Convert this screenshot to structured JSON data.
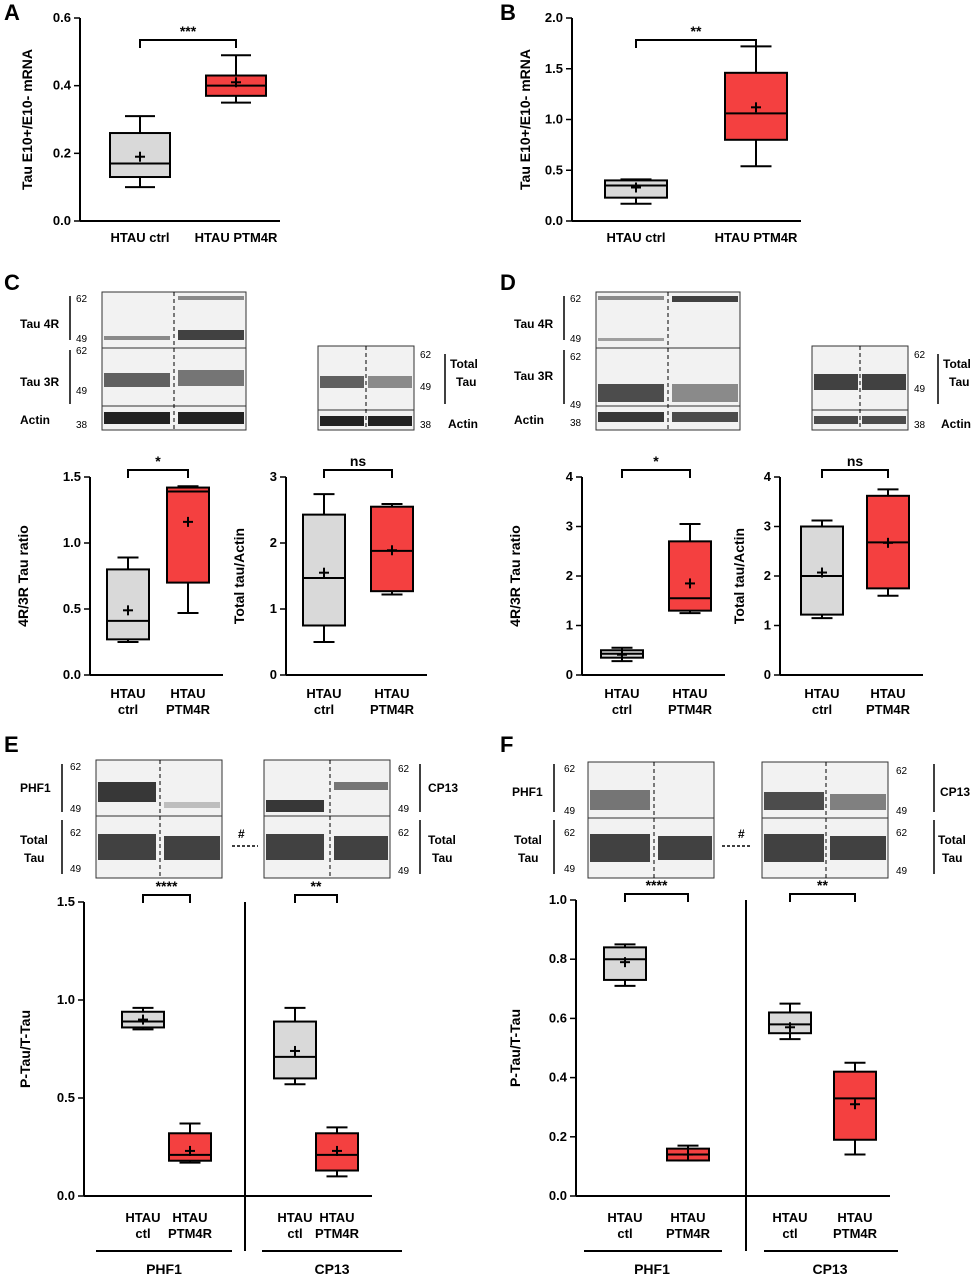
{
  "colors": {
    "ctrl": "#d9d9d9",
    "ptm4r": "#f44040",
    "stroke": "#000000"
  },
  "chart_data": [
    {
      "panel": "A",
      "type": "box",
      "ylabel": "Tau E10+/E10- mRNA",
      "ylim": [
        0,
        0.6
      ],
      "yticks": [
        0.0,
        0.2,
        0.4,
        0.6
      ],
      "categories": [
        "HTAU ctrl",
        "HTAU PTM4R"
      ],
      "series": [
        {
          "min": 0.1,
          "q1": 0.13,
          "median": 0.17,
          "q3": 0.26,
          "max": 0.31,
          "mean": 0.19,
          "color": "ctrl"
        },
        {
          "min": 0.35,
          "q1": 0.37,
          "median": 0.4,
          "q3": 0.43,
          "max": 0.49,
          "mean": 0.41,
          "color": "ptm4r"
        }
      ],
      "significance": "***"
    },
    {
      "panel": "B",
      "type": "box",
      "ylabel": "Tau E10+/E10- mRNA",
      "ylim": [
        0,
        2.0
      ],
      "yticks": [
        0.0,
        0.5,
        1.0,
        1.5,
        2.0
      ],
      "categories": [
        "HTAU ctrl",
        "HTAU PTM4R"
      ],
      "series": [
        {
          "min": 0.17,
          "q1": 0.23,
          "median": 0.35,
          "q3": 0.4,
          "max": 0.41,
          "mean": 0.33,
          "color": "ctrl"
        },
        {
          "min": 0.54,
          "q1": 0.8,
          "median": 1.06,
          "q3": 1.46,
          "max": 1.72,
          "mean": 1.12,
          "color": "ptm4r"
        }
      ],
      "significance": "**"
    },
    {
      "panel": "C1",
      "type": "box",
      "ylabel": "4R/3R Tau ratio",
      "ylim": [
        0,
        1.5
      ],
      "yticks": [
        0.0,
        0.5,
        1.0,
        1.5
      ],
      "categories": [
        "HTAU\nctrl",
        "HTAU\nPTM4R"
      ],
      "series": [
        {
          "min": 0.25,
          "q1": 0.27,
          "median": 0.41,
          "q3": 0.8,
          "max": 0.89,
          "mean": 0.49,
          "color": "ctrl"
        },
        {
          "min": 0.47,
          "q1": 0.7,
          "median": 1.39,
          "q3": 1.42,
          "max": 1.43,
          "mean": 1.16,
          "color": "ptm4r"
        }
      ],
      "significance": "*"
    },
    {
      "panel": "C2",
      "type": "box",
      "ylabel": "Total tau/Actin",
      "ylim": [
        0,
        3
      ],
      "yticks": [
        0,
        1,
        2,
        3
      ],
      "categories": [
        "HTAU\nctrl",
        "HTAU\nPTM4R"
      ],
      "series": [
        {
          "min": 0.5,
          "q1": 0.75,
          "median": 1.47,
          "q3": 2.43,
          "max": 2.74,
          "mean": 1.55,
          "color": "ctrl"
        },
        {
          "min": 1.22,
          "q1": 1.27,
          "median": 1.88,
          "q3": 2.55,
          "max": 2.59,
          "mean": 1.89,
          "color": "ptm4r"
        }
      ],
      "significance": "ns"
    },
    {
      "panel": "D1",
      "type": "box",
      "ylabel": "4R/3R Tau ratio",
      "ylim": [
        0,
        4
      ],
      "yticks": [
        0,
        1,
        2,
        3,
        4
      ],
      "categories": [
        "HTAU\nctrl",
        "HTAU\nPTM4R"
      ],
      "series": [
        {
          "min": 0.28,
          "q1": 0.35,
          "median": 0.43,
          "q3": 0.5,
          "max": 0.55,
          "mean": 0.41,
          "color": "ctrl"
        },
        {
          "min": 1.25,
          "q1": 1.3,
          "median": 1.55,
          "q3": 2.7,
          "max": 3.05,
          "mean": 1.85,
          "color": "ptm4r"
        }
      ],
      "significance": "*"
    },
    {
      "panel": "D2",
      "type": "box",
      "ylabel": "Total tau/Actin",
      "ylim": [
        0,
        4
      ],
      "yticks": [
        0,
        1,
        2,
        3,
        4
      ],
      "categories": [
        "HTAU\nctrl",
        "HTAU\nPTM4R"
      ],
      "series": [
        {
          "min": 1.15,
          "q1": 1.22,
          "median": 2.0,
          "q3": 3.0,
          "max": 3.12,
          "mean": 2.07,
          "color": "ctrl"
        },
        {
          "min": 1.6,
          "q1": 1.75,
          "median": 2.68,
          "q3": 3.62,
          "max": 3.75,
          "mean": 2.67,
          "color": "ptm4r"
        }
      ],
      "significance": "ns"
    },
    {
      "panel": "E",
      "type": "box",
      "ylabel": "P-Tau/T-Tau",
      "ylim": [
        0,
        1.5
      ],
      "yticks": [
        0.0,
        0.5,
        1.0,
        1.5
      ],
      "categories": [
        "HTAU\nctl",
        "HTAU\nPTM4R",
        "HTAU\nctl",
        "HTAU\nPTM4R"
      ],
      "groups": [
        "PHF1",
        "CP13"
      ],
      "series": [
        {
          "min": 0.85,
          "q1": 0.86,
          "median": 0.89,
          "q3": 0.94,
          "max": 0.96,
          "mean": 0.9,
          "color": "ctrl"
        },
        {
          "min": 0.17,
          "q1": 0.18,
          "median": 0.21,
          "q3": 0.32,
          "max": 0.37,
          "mean": 0.23,
          "color": "ptm4r"
        },
        {
          "min": 0.57,
          "q1": 0.6,
          "median": 0.71,
          "q3": 0.89,
          "max": 0.96,
          "mean": 0.74,
          "color": "ctrl"
        },
        {
          "min": 0.1,
          "q1": 0.13,
          "median": 0.21,
          "q3": 0.32,
          "max": 0.35,
          "mean": 0.23,
          "color": "ptm4r"
        }
      ],
      "significance": [
        "****",
        "**"
      ]
    },
    {
      "panel": "F",
      "type": "box",
      "ylabel": "P-Tau/T-Tau",
      "ylim": [
        0,
        1.0
      ],
      "yticks": [
        0.0,
        0.2,
        0.4,
        0.6,
        0.8,
        1.0
      ],
      "categories": [
        "HTAU\nctl",
        "HTAU\nPTM4R",
        "HTAU\nctl",
        "HTAU\nPTM4R"
      ],
      "groups": [
        "PHF1",
        "CP13"
      ],
      "series": [
        {
          "min": 0.71,
          "q1": 0.73,
          "median": 0.8,
          "q3": 0.84,
          "max": 0.85,
          "mean": 0.79,
          "color": "ctrl"
        },
        {
          "min": 0.12,
          "q1": 0.12,
          "median": 0.14,
          "q3": 0.16,
          "max": 0.17,
          "mean": 0.14,
          "color": "ptm4r"
        },
        {
          "min": 0.53,
          "q1": 0.55,
          "median": 0.58,
          "q3": 0.62,
          "max": 0.65,
          "mean": 0.57,
          "color": "ctrl"
        },
        {
          "min": 0.14,
          "q1": 0.19,
          "median": 0.33,
          "q3": 0.42,
          "max": 0.45,
          "mean": 0.31,
          "color": "ptm4r"
        }
      ],
      "significance": [
        "****",
        "**"
      ]
    }
  ],
  "blots": {
    "C": {
      "tau4r": "Tau 4R",
      "tau3r": "Tau 3R",
      "actin": "Actin",
      "total1": "Total",
      "total2": "Tau",
      "mw": [
        "62",
        "49",
        "62",
        "49",
        "38",
        "62",
        "49",
        "38"
      ]
    },
    "D": {
      "tau4r": "Tau 4R",
      "tau3r": "Tau 3R",
      "actin": "Actin",
      "total1": "Total",
      "total2": "Tau",
      "mw": [
        "62",
        "49",
        "62",
        "49",
        "38",
        "62",
        "49",
        "38"
      ]
    },
    "E": {
      "phf1": "PHF1",
      "cp13": "CP13",
      "total1": "Total",
      "total2": "Tau",
      "hash": "#",
      "mw": [
        "62",
        "49",
        "62",
        "49"
      ]
    },
    "F": {
      "phf1": "PHF1",
      "cp13": "CP13",
      "total1": "Total",
      "total2": "Tau",
      "hash": "#",
      "mw": [
        "62",
        "49",
        "62",
        "49"
      ]
    }
  },
  "labels": {
    "A": "A",
    "B": "B",
    "C": "C",
    "D": "D",
    "E": "E",
    "F": "F",
    "phf1": "PHF1",
    "cp13": "CP13"
  }
}
